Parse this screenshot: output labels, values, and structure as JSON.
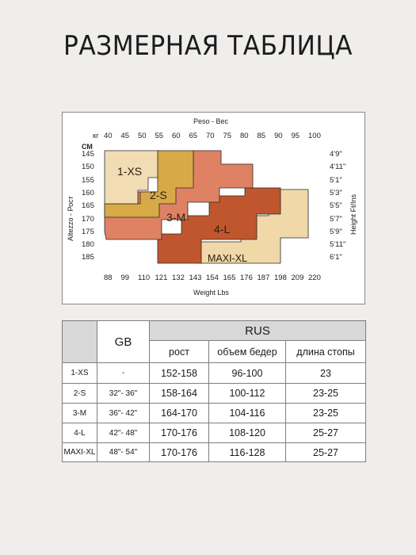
{
  "title": "РАЗМЕРНАЯ ТАБЛИЦА",
  "chart": {
    "top_axis_title": "Peso - Вес",
    "kg_unit": "кг",
    "kg_ticks": [
      "40",
      "45",
      "50",
      "55",
      "60",
      "65",
      "70",
      "75",
      "80",
      "85",
      "90",
      "95",
      "100"
    ],
    "cm_unit": "СМ",
    "cm_ticks": [
      "145",
      "150",
      "155",
      "160",
      "165",
      "170",
      "175",
      "180",
      "185"
    ],
    "left_axis_title": "Altezzo - Рост",
    "bottom_axis_title": "Weight Lbs",
    "lbs_ticks": [
      "88",
      "99",
      "110",
      "121",
      "132",
      "143",
      "154",
      "165",
      "176",
      "187",
      "198",
      "209",
      "220"
    ],
    "right_axis_title": "Height Ft/Ins",
    "ft_ticks": [
      "4'9\"",
      "4'11\"",
      "5'1\"",
      "5'3\"",
      "5'5\"",
      "5'7\"",
      "5'9\"",
      "5'11\"",
      "6'1\""
    ],
    "zones": [
      {
        "label": "1-XS",
        "color": "#f2dcb3"
      },
      {
        "label": "2-S",
        "color": "#d8a947"
      },
      {
        "label": "3-M",
        "color": "#de8263"
      },
      {
        "label": "4-L",
        "color": "#c0562d"
      },
      {
        "label": "MAXI-XL",
        "color": "#f0d8a8"
      }
    ]
  },
  "table": {
    "gb_header": "GB",
    "rus_header": "RUS",
    "sub_headers": [
      "рост",
      "объем бедер",
      "длина стопы"
    ],
    "rows": [
      {
        "size": "1-XS",
        "gb": "-",
        "height": "152-158",
        "hips": "96-100",
        "foot": "23"
      },
      {
        "size": "2-S",
        "gb": "32\"- 36\"",
        "height": "158-164",
        "hips": "100-112",
        "foot": "23-25"
      },
      {
        "size": "3-M",
        "gb": "36\"- 42\"",
        "height": "164-170",
        "hips": "104-116",
        "foot": "23-25"
      },
      {
        "size": "4-L",
        "gb": "42\"- 48\"",
        "height": "170-176",
        "hips": "108-120",
        "foot": "25-27"
      },
      {
        "size": "MAXI-XL",
        "gb": "48\"- 54\"",
        "height": "170-176",
        "hips": "116-128",
        "foot": "25-27"
      }
    ]
  }
}
